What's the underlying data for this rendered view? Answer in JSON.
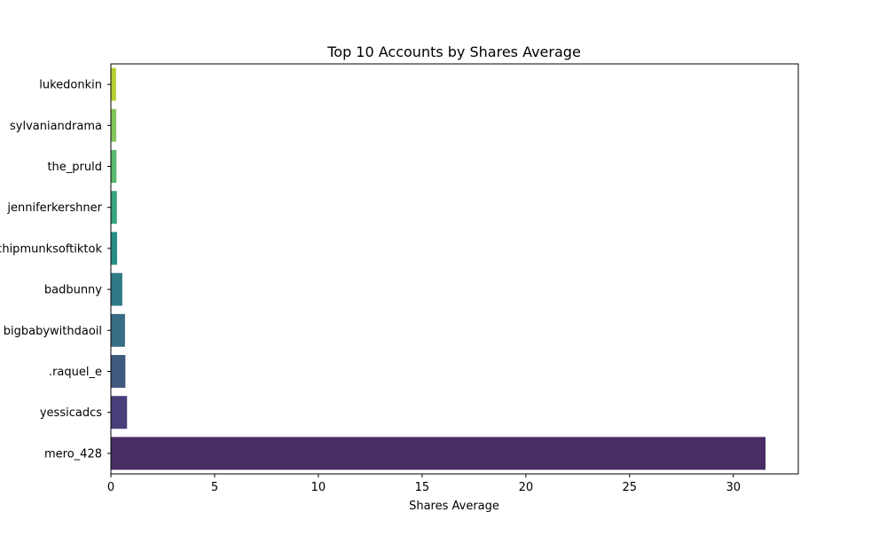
{
  "chart_data": {
    "type": "bar",
    "orientation": "horizontal",
    "title": "Top 10 Accounts by Shares Average",
    "xlabel": "Shares Average",
    "ylabel": "",
    "categories": [
      "lukedonkin",
      "sylvaniandrama",
      "the_pruld",
      "jenniferkershner",
      "chipmunksoftiktok",
      "badbunny",
      "bigbabywithdaoil",
      ".raquel_e",
      "yessicadcs",
      "mero_428"
    ],
    "values": [
      0.25,
      0.26,
      0.27,
      0.29,
      0.3,
      0.55,
      0.68,
      0.7,
      0.78,
      31.55
    ],
    "colors": [
      "#b5cf31",
      "#84c45c",
      "#5bb86e",
      "#37a47f",
      "#278e87",
      "#2f7a87",
      "#386c85",
      "#40597f",
      "#473f7a",
      "#482c63"
    ],
    "xlim": [
      0,
      33.13
    ],
    "xticks": [
      0,
      5,
      10,
      15,
      20,
      25,
      30
    ],
    "grid": false,
    "legend": "none"
  }
}
